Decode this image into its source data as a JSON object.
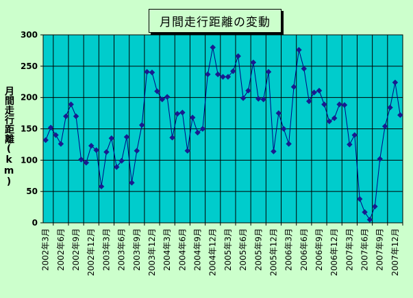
{
  "chart_data": {
    "type": "line",
    "title": "月間走行距離の変動",
    "ylabel": "月間走行距離(km)",
    "xlabel": "",
    "ylim": [
      0,
      300
    ],
    "yticks": [
      0,
      50,
      100,
      150,
      200,
      250,
      300
    ],
    "grid": true,
    "xtick_labels": [
      "2002年3月",
      "2002年6月",
      "2002年9月",
      "2002年12月",
      "2003年3月",
      "2003年6月",
      "2003年9月",
      "2003年12月",
      "2004年3月",
      "2004年6月",
      "2004年9月",
      "2004年12月",
      "2005年3月",
      "2005年6月",
      "2005年9月",
      "2005年12月",
      "2006年3月",
      "2006年6月",
      "2006年9月",
      "2006年12月",
      "2007年3月",
      "2007年6月",
      "2007年9月",
      "2007年12月"
    ],
    "series": [
      {
        "values": [
          132,
          152,
          140,
          126,
          170,
          189,
          170,
          101,
          96,
          123,
          116,
          58,
          113,
          135,
          89,
          99,
          137,
          64,
          115,
          156,
          241,
          240,
          210,
          197,
          201,
          136,
          174,
          176,
          115,
          168,
          144,
          150,
          237,
          280,
          237,
          233,
          233,
          242,
          266,
          199,
          211,
          256,
          198,
          197,
          241,
          114,
          175,
          150,
          126,
          217,
          276,
          246,
          194,
          208,
          211,
          189,
          162,
          167,
          189,
          188,
          125,
          140,
          38,
          17,
          5,
          26,
          102,
          154,
          184,
          224,
          172
        ]
      }
    ]
  },
  "colors": {
    "page_background": "#ccffcc",
    "plot_background": "#00cccc",
    "line": "#00007f",
    "marker": "#1a1a8f",
    "grid": "#000000"
  }
}
